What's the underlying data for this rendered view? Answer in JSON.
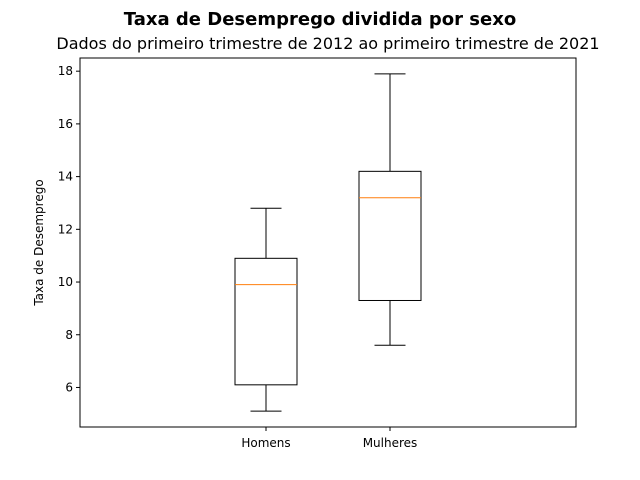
{
  "chart_data": {
    "type": "box",
    "title": "Taxa de Desemprego dividida por sexo",
    "subtitle": "Dados do primeiro trimestre de 2012 ao primeiro trimestre de 2021",
    "xlabel": "",
    "ylabel": "Taxa de Desemprego",
    "ylim": [
      4.5,
      18.5
    ],
    "yticks": [
      6,
      8,
      10,
      12,
      14,
      16,
      18
    ],
    "categories": [
      "Homens",
      "Mulheres"
    ],
    "boxes": [
      {
        "category": "Homens",
        "whisker_low": 5.1,
        "q1": 6.1,
        "median": 9.9,
        "q3": 10.9,
        "whisker_high": 12.8
      },
      {
        "category": "Mulheres",
        "whisker_low": 7.6,
        "q1": 9.3,
        "median": 13.2,
        "q3": 14.2,
        "whisker_high": 17.9
      }
    ],
    "grid": false,
    "colors": {
      "box": "#000000",
      "median": "#ff7f0e",
      "axes": "#000000",
      "background": "#ffffff"
    }
  }
}
